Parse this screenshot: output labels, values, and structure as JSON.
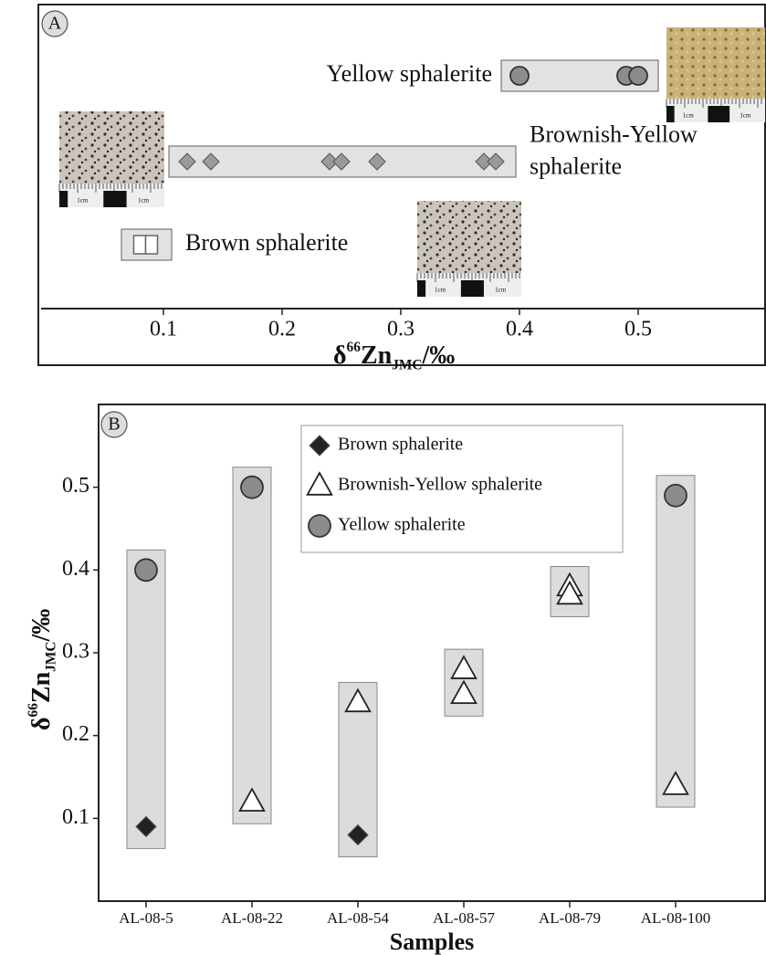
{
  "chart_data": [
    {
      "type": "strip",
      "panel_label": "A",
      "x_label": [
        "δ",
        "66",
        "Zn",
        "JMC",
        "/‰"
      ],
      "xlim": [
        0,
        0.6
      ],
      "xticks": [
        0.1,
        0.2,
        0.3,
        0.4,
        0.5
      ],
      "photo_scale_label": "1cm",
      "series": [
        {
          "label_lines": [
            "Yellow sphalerite"
          ],
          "marker": "circle",
          "color": "#8c8c8c",
          "values": [
            0.4,
            0.49,
            0.5
          ]
        },
        {
          "label_lines": [
            "Brownish-Yellow",
            "sphalerite"
          ],
          "marker": "diamond",
          "color": "#9a9a9a",
          "values": [
            0.12,
            0.14,
            0.24,
            0.25,
            0.28,
            0.37,
            0.38
          ]
        },
        {
          "label_lines": [
            "Brown sphalerite"
          ],
          "marker": "bar",
          "color": "#ffffff",
          "values": [
            0.08,
            0.09
          ]
        }
      ]
    },
    {
      "type": "scatter",
      "panel_label": "B",
      "x_title": "Samples",
      "y_label": [
        "δ",
        "66",
        "Zn",
        "JMC",
        "/‰"
      ],
      "categories": [
        "AL-08-5",
        "AL-08-22",
        "AL-08-54",
        "AL-08-57",
        "AL-08-79",
        "AL-08-100"
      ],
      "ylim": [
        0,
        0.6
      ],
      "yticks": [
        0.1,
        0.2,
        0.3,
        0.4,
        0.5
      ],
      "series": [
        {
          "name": "Brown sphalerite",
          "marker": "diamond",
          "color": "#222222",
          "x": [
            "AL-08-5",
            "AL-08-54"
          ],
          "values": [
            0.09,
            0.08
          ]
        },
        {
          "name": "Brownish-Yellow sphalerite",
          "marker": "triangle",
          "color": "#ffffff",
          "x": [
            "AL-08-22",
            "AL-08-54",
            "AL-08-57",
            "AL-08-57",
            "AL-08-79",
            "AL-08-79",
            "AL-08-100"
          ],
          "values": [
            0.12,
            0.24,
            0.28,
            0.25,
            0.38,
            0.37,
            0.14
          ]
        },
        {
          "name": "Yellow sphalerite",
          "marker": "circle",
          "color": "#8c8c8c",
          "x": [
            "AL-08-5",
            "AL-08-22",
            "AL-08-100"
          ],
          "values": [
            0.4,
            0.5,
            0.49
          ]
        }
      ]
    }
  ]
}
